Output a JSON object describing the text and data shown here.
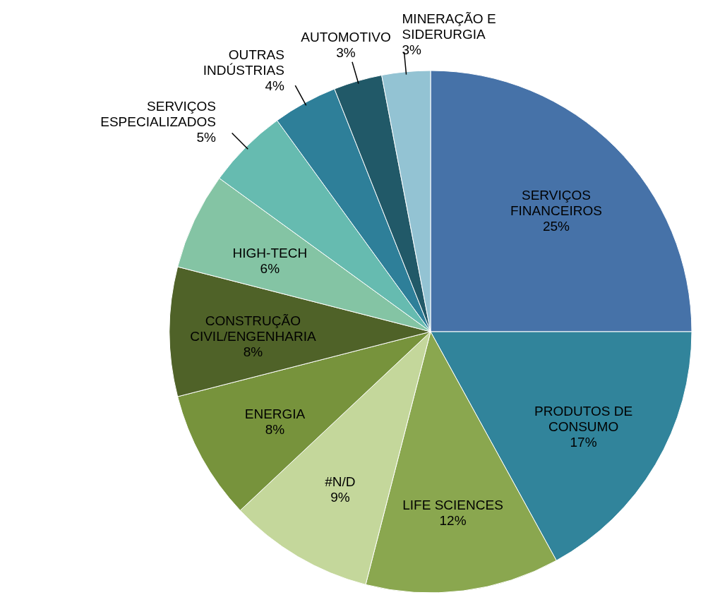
{
  "chart_data": {
    "type": "pie",
    "categories": [
      "SERVIÇOS\nFINANCEIROS",
      "PRODUTOS DE\nCONSUMO",
      "LIFE SCIENCES",
      "#N/D",
      "ENERGIA",
      "CONSTRUÇÃO\nCIVIL/ENGENHARIA",
      "HIGH-TECH",
      "SERVIÇOS\nESPECIALIZADOS",
      "OUTRAS\nINDÚSTRIAS",
      "AUTOMOTIVO",
      "MINERAÇÃO E\nSIDERURGIA"
    ],
    "values": [
      25,
      17,
      12,
      9,
      8,
      8,
      6,
      5,
      4,
      3,
      3
    ],
    "colors": [
      "#4672a8",
      "#31849b",
      "#8aa74f",
      "#c4d79b",
      "#77933c",
      "#4f6228",
      "#84c4a4",
      "#66bbb0",
      "#2e7f99",
      "#215968",
      "#93c3d3"
    ],
    "value_labels": [
      "25%",
      "17%",
      "12%",
      "9%",
      "8%",
      "8%",
      "6%",
      "5%",
      "4%",
      "3%",
      "3%"
    ]
  }
}
